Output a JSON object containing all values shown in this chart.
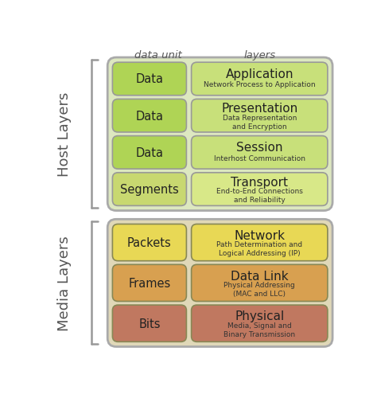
{
  "title_data_unit": "data unit",
  "title_layers": "layers",
  "host_label": "Host Layers",
  "media_label": "Media Layers",
  "host_layers": [
    {
      "data_unit": "Data",
      "layer_name": "Application",
      "layer_desc": "Network Process to Application",
      "du_color": "#afd455",
      "layer_color": "#c8e07a"
    },
    {
      "data_unit": "Data",
      "layer_name": "Presentation",
      "layer_desc": "Data Representation\nand Encryption",
      "du_color": "#afd455",
      "layer_color": "#c8e07a"
    },
    {
      "data_unit": "Data",
      "layer_name": "Session",
      "layer_desc": "Interhost Communication",
      "du_color": "#afd455",
      "layer_color": "#c8e07a"
    },
    {
      "data_unit": "Segments",
      "layer_name": "Transport",
      "layer_desc": "End-to-End Connections\nand Reliability",
      "du_color": "#c8d870",
      "layer_color": "#d8e888"
    }
  ],
  "media_layers": [
    {
      "data_unit": "Packets",
      "layer_name": "Network",
      "layer_desc": "Path Determination and\nLogical Addressing (IP)",
      "du_color": "#e8d855",
      "layer_color": "#e8d855"
    },
    {
      "data_unit": "Frames",
      "layer_name": "Data Link",
      "layer_desc": "Physical Addressing\n(MAC and LLC)",
      "du_color": "#d8a050",
      "layer_color": "#d8a050"
    },
    {
      "data_unit": "Bits",
      "layer_name": "Physical",
      "layer_desc": "Media, Signal and\nBinary Transmission",
      "du_color": "#c07860",
      "layer_color": "#c07860"
    }
  ],
  "host_group_color": "#dde8c0",
  "host_group_edge": "#aaaaaa",
  "media_group_color": "#e0d8b8",
  "media_group_edge": "#aaaaaa",
  "bracket_color": "#999999"
}
